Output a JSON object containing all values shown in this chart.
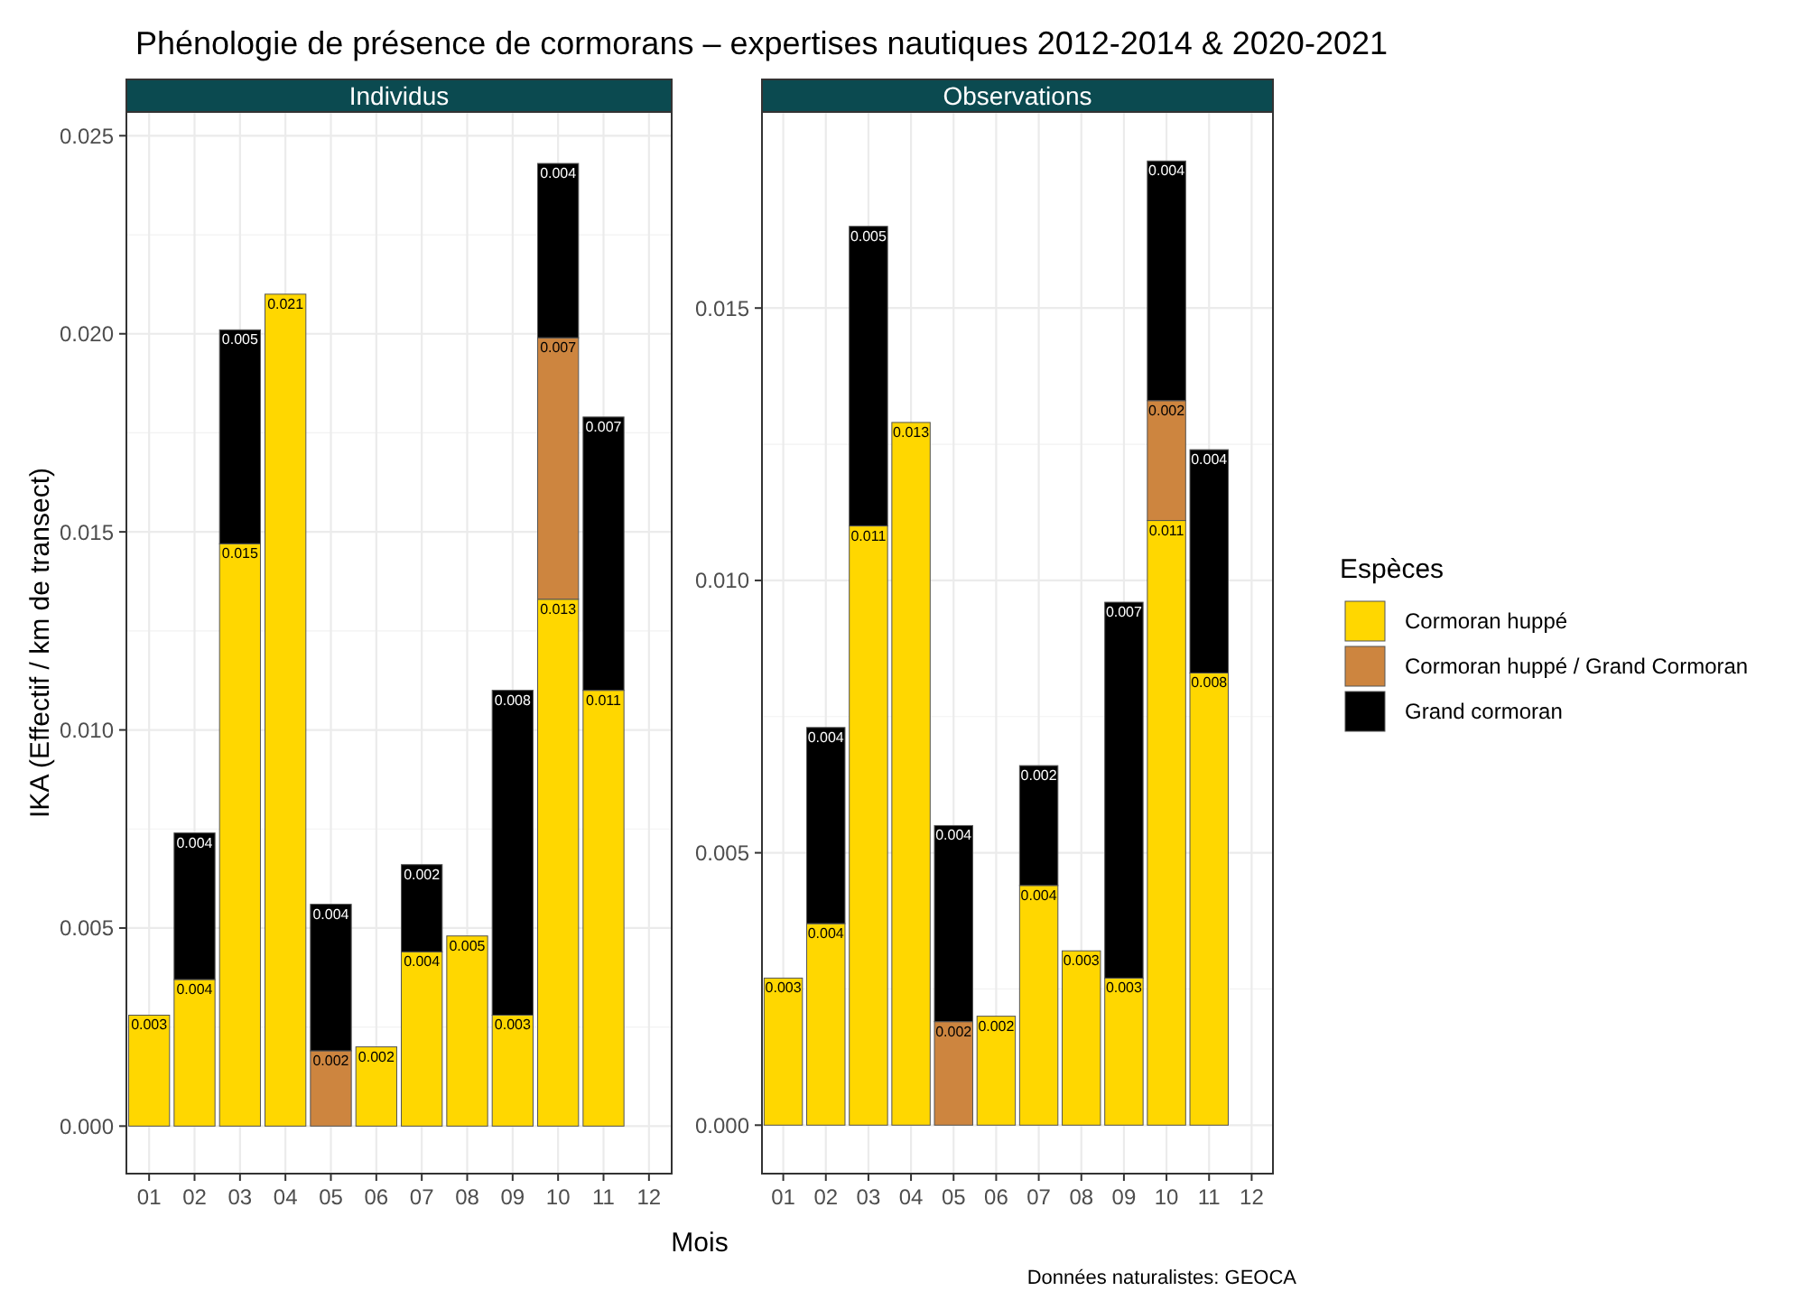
{
  "chart_data": [
    {
      "type": "bar",
      "title": "Phénologie de présence de cormorans – expertises nautiques 2012-2014 & 2020-2021",
      "subtitle": "Individus",
      "xlabel": "Mois",
      "ylabel": "IKA (Effectif / km de transect)",
      "categories": [
        "01",
        "02",
        "03",
        "04",
        "05",
        "06",
        "07",
        "08",
        "09",
        "10",
        "11",
        "12"
      ],
      "stacked": true,
      "grid": true,
      "ylim": [
        -0.0012,
        0.0256
      ],
      "yticks": [
        {
          "value": 0,
          "label": "0.000"
        },
        {
          "value": 0.005,
          "label": "0.005"
        },
        {
          "value": 0.01,
          "label": "0.010"
        },
        {
          "value": 0.015,
          "label": "0.015"
        },
        {
          "value": 0.02,
          "label": "0.020"
        },
        {
          "value": 0.025,
          "label": "0.025"
        }
      ],
      "series": [
        {
          "color": "#ffd700",
          "values": [
            0.0028,
            0.0037,
            0.0147,
            0.021,
            0,
            0.002,
            0.0044,
            0.0048,
            0.0028,
            0.0133,
            0.011,
            0
          ],
          "value_labels": [
            "0.003",
            "0.004",
            "0.015",
            "0.021",
            null,
            "0.002",
            "0.004",
            "0.005",
            "0.003",
            "0.013",
            "0.011",
            null
          ]
        },
        {
          "color": "#cd853f",
          "values": [
            0,
            0,
            0,
            0,
            0.0019,
            0,
            0,
            0,
            0,
            0.0066,
            0,
            0
          ],
          "value_labels": [
            null,
            null,
            null,
            null,
            "0.002",
            null,
            null,
            null,
            null,
            "0.007",
            null,
            null
          ]
        },
        {
          "color": "#000000",
          "values": [
            0,
            0.0037,
            0.0054,
            0,
            0.0037,
            0,
            0.0022,
            0,
            0.0082,
            0.0044,
            0.0069,
            0
          ],
          "value_labels": [
            null,
            "0.004",
            "0.005",
            null,
            "0.004",
            null,
            "0.002",
            null,
            "0.008",
            "0.004",
            "0.007",
            null
          ]
        }
      ]
    },
    {
      "type": "bar",
      "subtitle": "Observations",
      "categories": [
        "01",
        "02",
        "03",
        "04",
        "05",
        "06",
        "07",
        "08",
        "09",
        "10",
        "11",
        "12"
      ],
      "stacked": true,
      "grid": true,
      "legend": "right",
      "legend_title": "Espèces",
      "ylim": [
        -0.00089,
        0.0186
      ],
      "yticks": [
        {
          "value": 0,
          "label": "0.000"
        },
        {
          "value": 0.005,
          "label": "0.005"
        },
        {
          "value": 0.01,
          "label": "0.010"
        },
        {
          "value": 0.015,
          "label": "0.015"
        }
      ],
      "annotations": [
        "Données naturalistes: GEOCA"
      ],
      "series": [
        {
          "name": "Cormoran huppé",
          "color": "#ffd700",
          "values": [
            0.0027,
            0.0037,
            0.011,
            0.0129,
            0,
            0.002,
            0.0044,
            0.0032,
            0.0027,
            0.0111,
            0.0083,
            0
          ],
          "value_labels": [
            "0.003",
            "0.004",
            "0.011",
            "0.013",
            null,
            "0.002",
            "0.004",
            "0.003",
            "0.003",
            "0.011",
            "0.008",
            null
          ]
        },
        {
          "name": "Cormoran huppé / Grand Cormoran",
          "color": "#cd853f",
          "values": [
            0,
            0,
            0,
            0,
            0.0019,
            0,
            0,
            0,
            0,
            0.0022,
            0,
            0
          ],
          "value_labels": [
            null,
            null,
            null,
            null,
            "0.002",
            null,
            null,
            null,
            null,
            "0.002",
            null,
            null
          ]
        },
        {
          "name": "Grand cormoran",
          "color": "#000000",
          "values": [
            0,
            0.0036,
            0.0055,
            0,
            0.0036,
            0,
            0.0022,
            0,
            0.0069,
            0.0044,
            0.0041,
            0
          ],
          "value_labels": [
            null,
            "0.004",
            "0.005",
            null,
            "0.004",
            null,
            "0.002",
            null,
            "0.007",
            "0.004",
            "0.004",
            null
          ]
        }
      ]
    }
  ]
}
